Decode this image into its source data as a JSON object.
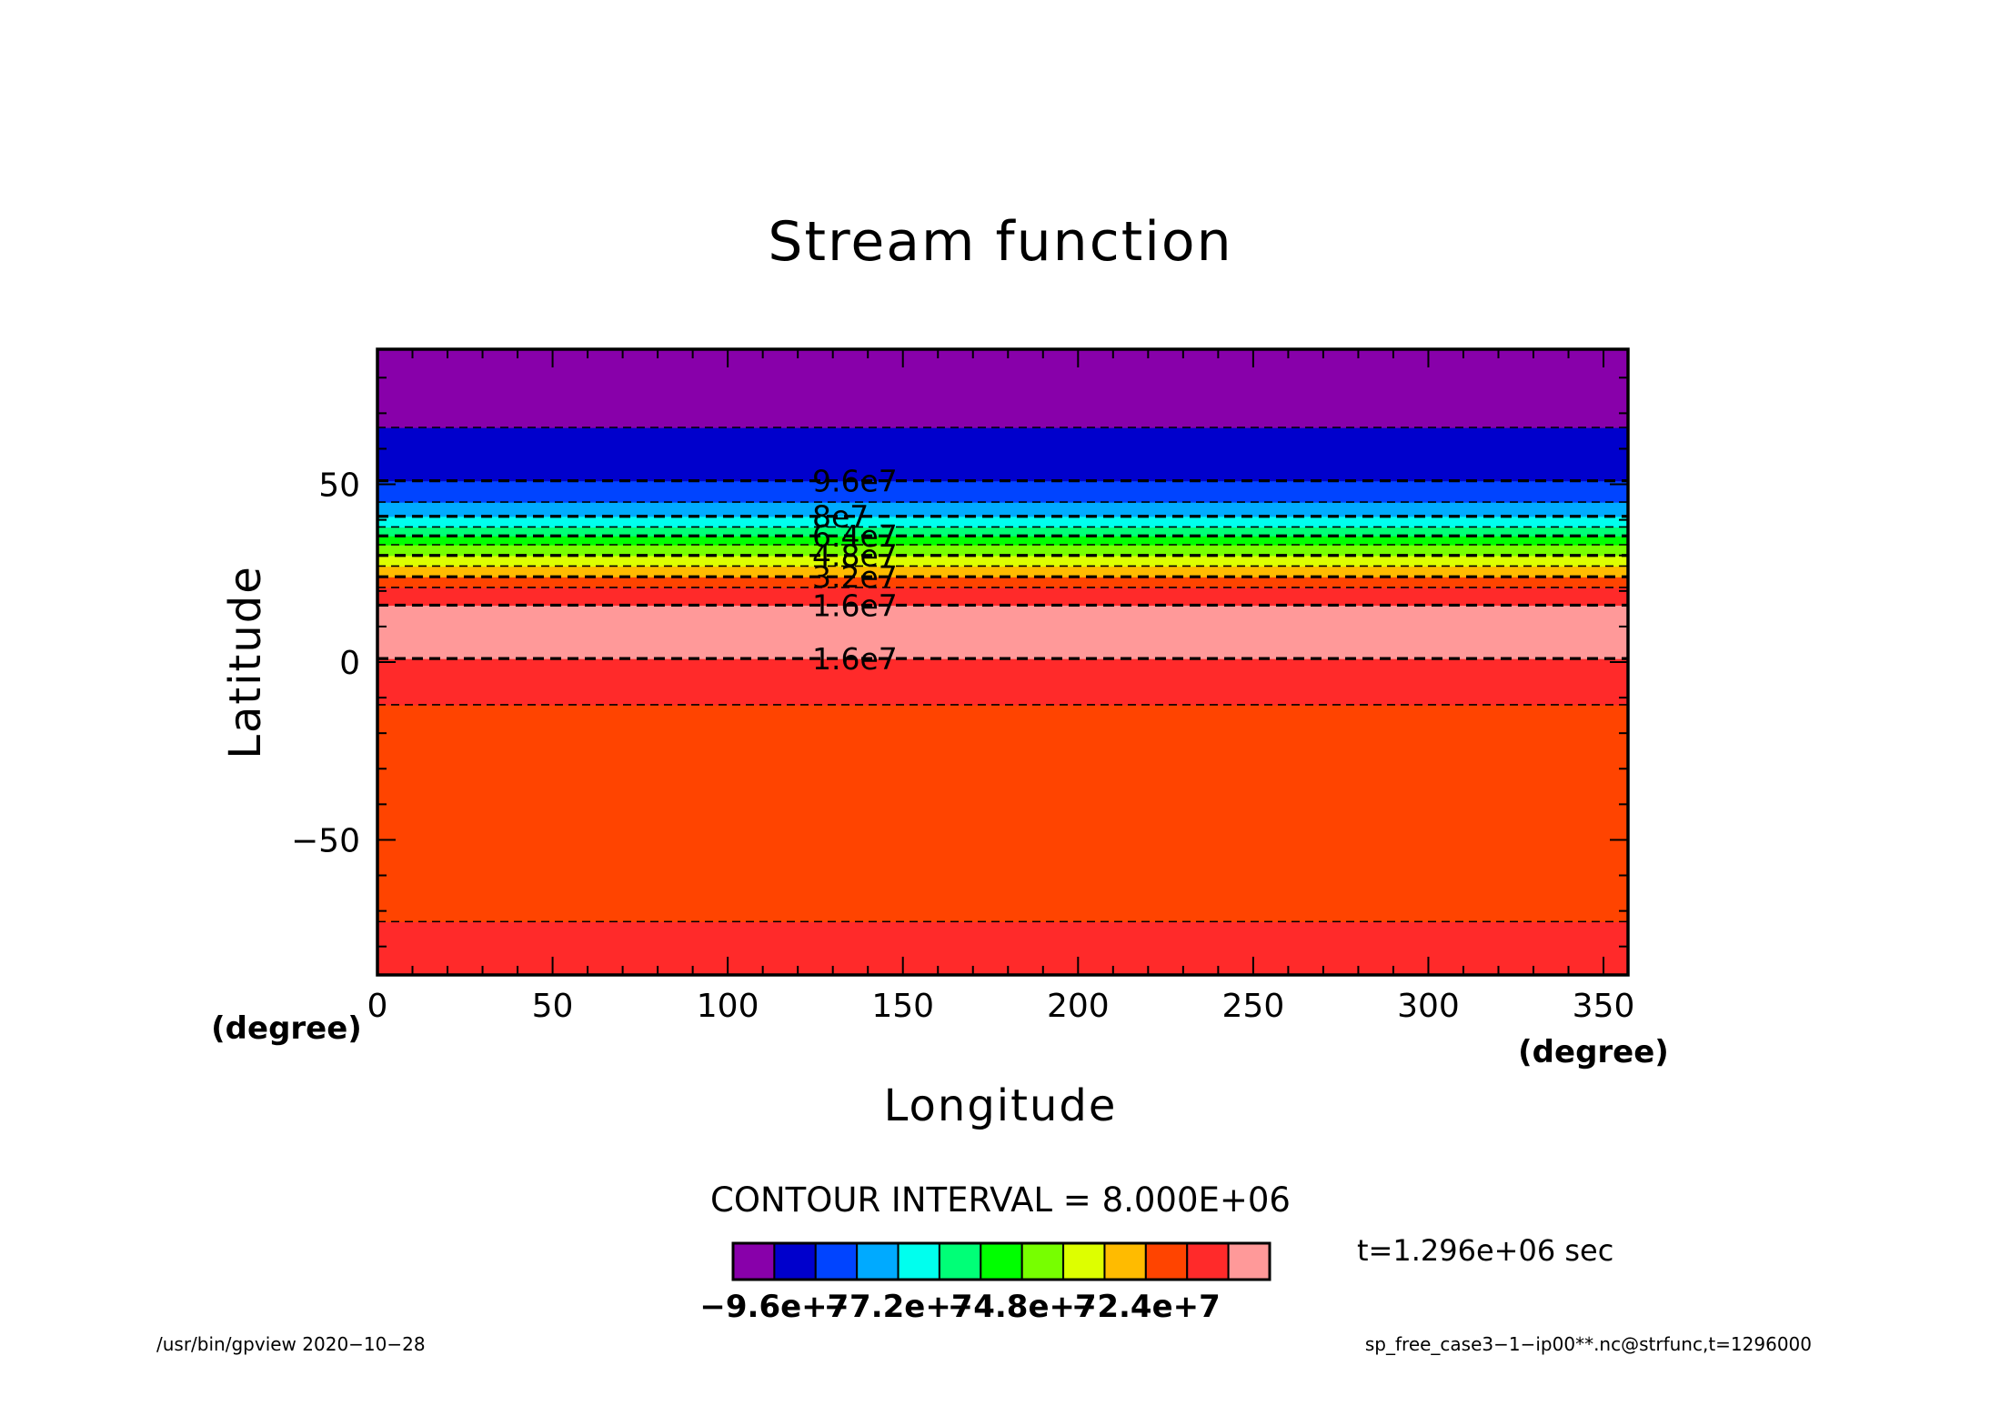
{
  "chart_data": {
    "type": "heatmap",
    "title": "Stream function",
    "xlabel": "Longitude",
    "ylabel": "Latitude",
    "x_unit": "(degree)",
    "y_unit": "(degree)",
    "xlim": [
      0,
      357
    ],
    "ylim": [
      -88,
      88
    ],
    "x_ticks": [
      0,
      50,
      100,
      150,
      200,
      250,
      300,
      350
    ],
    "y_ticks": [
      -50,
      0,
      50
    ],
    "x_tick_labels": [
      "0",
      "50",
      "100",
      "150",
      "200",
      "250",
      "300",
      "350"
    ],
    "y_tick_labels": [
      "−50",
      "0",
      "50"
    ],
    "bands": [
      {
        "lat_min": -88,
        "lat_max": -73,
        "color": "#ff2a2a"
      },
      {
        "lat_min": -73,
        "lat_max": -12,
        "color": "#ff4400"
      },
      {
        "lat_min": -12,
        "lat_max": 1,
        "color": "#ff2a2a"
      },
      {
        "lat_min": 1,
        "lat_max": 16,
        "color": "#ff9999"
      },
      {
        "lat_min": 16,
        "lat_max": 21,
        "color": "#ff2a2a"
      },
      {
        "lat_min": 21,
        "lat_max": 24,
        "color": "#ff4400"
      },
      {
        "lat_min": 24,
        "lat_max": 27,
        "color": "#ffbb00"
      },
      {
        "lat_min": 27,
        "lat_max": 30,
        "color": "#ddff00"
      },
      {
        "lat_min": 30,
        "lat_max": 33,
        "color": "#77ff00"
      },
      {
        "lat_min": 33,
        "lat_max": 35.5,
        "color": "#00ff00"
      },
      {
        "lat_min": 35.5,
        "lat_max": 38,
        "color": "#00ff77"
      },
      {
        "lat_min": 38,
        "lat_max": 41,
        "color": "#00ffee"
      },
      {
        "lat_min": 41,
        "lat_max": 45,
        "color": "#00aaff"
      },
      {
        "lat_min": 45,
        "lat_max": 51,
        "color": "#0044ff"
      },
      {
        "lat_min": 51,
        "lat_max": 66,
        "color": "#0000cc"
      },
      {
        "lat_min": 66,
        "lat_max": 88,
        "color": "#8800aa"
      }
    ],
    "contours": [
      {
        "lat": -73,
        "major": false
      },
      {
        "lat": -12,
        "major": false
      },
      {
        "lat": 1,
        "major": true,
        "label": "1.6e7"
      },
      {
        "lat": 16,
        "major": true,
        "label": "1.6e7"
      },
      {
        "lat": 21,
        "major": false
      },
      {
        "lat": 24,
        "major": true,
        "label": "3.2e7"
      },
      {
        "lat": 27,
        "major": false
      },
      {
        "lat": 30,
        "major": true,
        "label": "4.8e7"
      },
      {
        "lat": 33,
        "major": false
      },
      {
        "lat": 35.5,
        "major": true,
        "label": "6.4e7"
      },
      {
        "lat": 38,
        "major": false
      },
      {
        "lat": 41,
        "major": true,
        "label": "8e7"
      },
      {
        "lat": 45,
        "major": false
      },
      {
        "lat": 51,
        "major": true,
        "label": "9.6e7"
      },
      {
        "lat": 66,
        "major": false
      }
    ],
    "contour_interval": "CONTOUR INTERVAL = 8.000E+06",
    "colorbar": {
      "colors": [
        "#8800aa",
        "#0000cc",
        "#0044ff",
        "#00aaff",
        "#00ffee",
        "#00ff77",
        "#00ff00",
        "#77ff00",
        "#ddff00",
        "#ffbb00",
        "#ff4400",
        "#ff2a2a",
        "#ff9999"
      ],
      "labels": [
        "−9.6e+7",
        "−7.2e+7",
        "−4.8e+7",
        "−2.4e+7"
      ]
    },
    "time_label": "t=1.296e+06 sec",
    "footer_left": "/usr/bin/gpview   2020−10−28",
    "footer_right": "sp_free_case3−1−ip00**.nc@strfunc,t=1296000"
  }
}
